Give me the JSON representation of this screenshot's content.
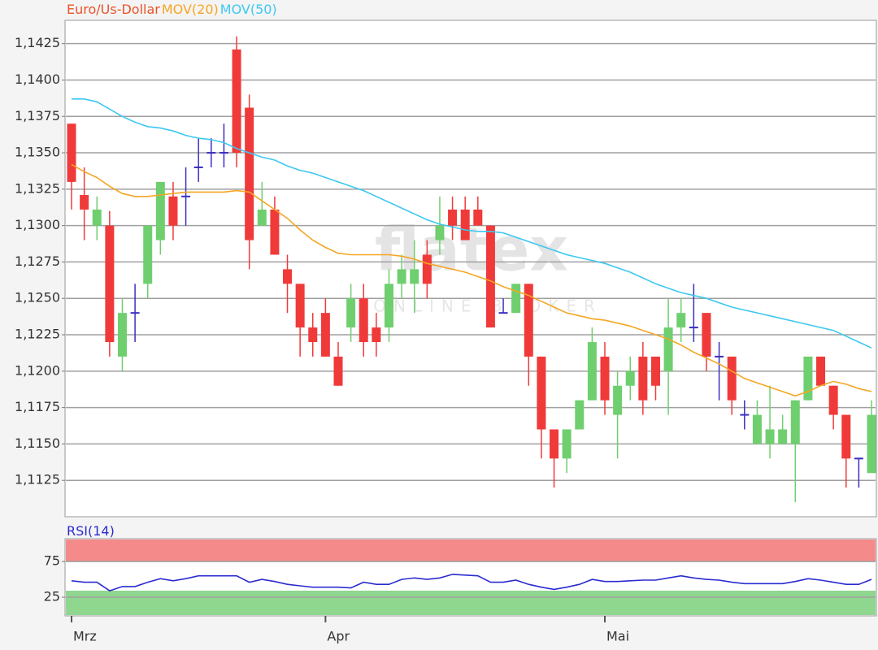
{
  "chart_data": [
    {
      "type": "candlestick",
      "name": "Euro/Us-Dollar",
      "name_color": "#e8542a",
      "up_color": "#6fcf6f",
      "down_color": "#f03a3a",
      "flat_color": "#3a2fc0",
      "watermark": "flatex",
      "watermark_subtitle": "ONLINE BROKER",
      "categories": [
        "Mrz",
        null,
        null,
        null,
        null,
        null,
        null,
        null,
        null,
        null,
        null,
        null,
        null,
        null,
        null,
        null,
        null,
        null,
        null,
        null,
        "Apr",
        null,
        null,
        null,
        null,
        null,
        null,
        null,
        null,
        null,
        null,
        null,
        null,
        null,
        null,
        null,
        null,
        null,
        null,
        null,
        null,
        null,
        "Mai",
        null,
        null,
        null,
        null,
        null,
        null,
        null,
        null,
        null,
        null,
        null,
        null,
        null,
        null,
        null,
        null,
        null,
        null,
        null,
        null,
        null
      ],
      "open": [
        1.137,
        1.1321,
        1.13,
        1.13,
        1.121,
        1.124,
        1.126,
        1.129,
        1.132,
        1.132,
        1.134,
        1.135,
        1.135,
        1.1421,
        1.1381,
        1.13,
        1.1311,
        1.127,
        1.126,
        1.123,
        1.124,
        1.121,
        1.123,
        1.125,
        1.123,
        1.123,
        1.126,
        1.126,
        1.128,
        1.129,
        1.1311,
        1.1311,
        1.1311,
        1.13,
        1.124,
        1.124,
        1.126,
        1.121,
        1.116,
        1.114,
        1.116,
        1.118,
        1.121,
        1.117,
        1.119,
        1.121,
        1.121,
        1.12,
        1.123,
        1.123,
        1.124,
        1.121,
        1.121,
        1.117,
        1.115,
        1.115,
        1.115,
        1.115,
        1.118,
        1.121,
        1.119,
        1.117,
        1.114,
        1.113
      ],
      "high": [
        1.137,
        1.134,
        1.132,
        1.131,
        1.125,
        1.126,
        1.13,
        1.133,
        1.133,
        1.134,
        1.136,
        1.136,
        1.137,
        1.143,
        1.139,
        1.133,
        1.132,
        1.128,
        1.126,
        1.124,
        1.125,
        1.122,
        1.126,
        1.126,
        1.124,
        1.127,
        1.128,
        1.129,
        1.129,
        1.132,
        1.132,
        1.132,
        1.132,
        1.13,
        1.125,
        1.126,
        1.126,
        1.121,
        1.116,
        1.116,
        1.118,
        1.123,
        1.122,
        1.12,
        1.121,
        1.122,
        1.121,
        1.125,
        1.125,
        1.126,
        1.124,
        1.122,
        1.121,
        1.118,
        1.118,
        1.119,
        1.117,
        1.118,
        1.121,
        1.121,
        1.119,
        1.117,
        1.114,
        1.118
      ],
      "low": [
        1.1311,
        1.129,
        1.129,
        1.121,
        1.12,
        1.122,
        1.125,
        1.128,
        1.129,
        1.13,
        1.133,
        1.134,
        1.134,
        1.134,
        1.127,
        1.13,
        1.128,
        1.124,
        1.121,
        1.121,
        1.121,
        1.119,
        1.122,
        1.121,
        1.121,
        1.122,
        1.125,
        1.124,
        1.125,
        1.128,
        1.129,
        1.129,
        1.13,
        1.123,
        1.124,
        1.124,
        1.119,
        1.114,
        1.112,
        1.113,
        1.116,
        1.118,
        1.117,
        1.114,
        1.118,
        1.117,
        1.118,
        1.117,
        1.122,
        1.122,
        1.12,
        1.118,
        1.117,
        1.116,
        1.115,
        1.114,
        1.115,
        1.111,
        1.118,
        1.119,
        1.116,
        1.112,
        1.112,
        1.113
      ],
      "close": [
        1.133,
        1.1311,
        1.1311,
        1.122,
        1.124,
        1.124,
        1.13,
        1.133,
        1.13,
        1.132,
        1.134,
        1.135,
        1.135,
        1.135,
        1.129,
        1.1311,
        1.128,
        1.126,
        1.123,
        1.122,
        1.121,
        1.119,
        1.125,
        1.122,
        1.122,
        1.126,
        1.127,
        1.127,
        1.126,
        1.13,
        1.13,
        1.129,
        1.13,
        1.123,
        1.124,
        1.126,
        1.121,
        1.116,
        1.114,
        1.116,
        1.118,
        1.122,
        1.118,
        1.119,
        1.12,
        1.118,
        1.119,
        1.123,
        1.124,
        1.123,
        1.121,
        1.121,
        1.118,
        1.117,
        1.117,
        1.116,
        1.116,
        1.118,
        1.121,
        1.119,
        1.117,
        1.114,
        1.114,
        1.117
      ],
      "series": [
        {
          "name": "MOV(20)",
          "color": "#f5a623",
          "values": [
            1.1342,
            1.1337,
            1.1333,
            1.1327,
            1.1322,
            1.132,
            1.132,
            1.1321,
            1.1322,
            1.1323,
            1.1323,
            1.1323,
            1.1323,
            1.1324,
            1.1323,
            1.1317,
            1.1311,
            1.1305,
            1.1297,
            1.129,
            1.1285,
            1.1281,
            1.128,
            1.128,
            1.128,
            1.128,
            1.1279,
            1.1277,
            1.1274,
            1.1272,
            1.127,
            1.1268,
            1.1265,
            1.1262,
            1.1258,
            1.1255,
            1.1252,
            1.1248,
            1.1244,
            1.124,
            1.1238,
            1.1236,
            1.1235,
            1.1233,
            1.1231,
            1.1228,
            1.1225,
            1.1222,
            1.1218,
            1.1213,
            1.1209,
            1.1205,
            1.12,
            1.1195,
            1.1192,
            1.1189,
            1.1186,
            1.1183,
            1.1186,
            1.119,
            1.1193,
            1.1191,
            1.1188,
            1.1186
          ]
        },
        {
          "name": "MOV(50)",
          "color": "#3cc8f0",
          "values": [
            1.1387,
            1.1387,
            1.1385,
            1.138,
            1.1375,
            1.1371,
            1.1368,
            1.1367,
            1.1365,
            1.1362,
            1.136,
            1.1359,
            1.1357,
            1.1353,
            1.135,
            1.1347,
            1.1345,
            1.1341,
            1.1338,
            1.1336,
            1.1333,
            1.133,
            1.1327,
            1.1324,
            1.132,
            1.1316,
            1.1312,
            1.1308,
            1.1304,
            1.1301,
            1.1299,
            1.1297,
            1.1296,
            1.1296,
            1.1295,
            1.1292,
            1.1289,
            1.1286,
            1.1283,
            1.128,
            1.1278,
            1.1276,
            1.1274,
            1.1271,
            1.1268,
            1.1264,
            1.126,
            1.1257,
            1.1254,
            1.1252,
            1.125,
            1.1247,
            1.1244,
            1.1242,
            1.124,
            1.1238,
            1.1236,
            1.1234,
            1.1232,
            1.123,
            1.1228,
            1.1224,
            1.122,
            1.1216
          ]
        }
      ],
      "ylim": [
        1.11,
        1.1441
      ],
      "yticks": [
        {
          "value": 1.1125,
          "label": "1,1125"
        },
        {
          "value": 1.115,
          "label": "1,1150"
        },
        {
          "value": 1.1175,
          "label": "1,1175"
        },
        {
          "value": 1.12,
          "label": "1,1200"
        },
        {
          "value": 1.1225,
          "label": "1,1225"
        },
        {
          "value": 1.125,
          "label": "1,1250"
        },
        {
          "value": 1.1275,
          "label": "1,1275"
        },
        {
          "value": 1.13,
          "label": "1,1300"
        },
        {
          "value": 1.1325,
          "label": "1,1325"
        },
        {
          "value": 1.135,
          "label": "1,1350"
        },
        {
          "value": 1.1375,
          "label": "1,1375"
        },
        {
          "value": 1.14,
          "label": "1,1400"
        },
        {
          "value": 1.1425,
          "label": "1,1425"
        }
      ],
      "grid": true
    },
    {
      "type": "line",
      "series": [
        {
          "name": "RSI(14)",
          "color": "#2b2bd0",
          "values": [
            48,
            46,
            46,
            34,
            40,
            40,
            46,
            51,
            48,
            51,
            55,
            55,
            55,
            55,
            46,
            50,
            47,
            43,
            41,
            39,
            39,
            39,
            38,
            46,
            43,
            43,
            50,
            52,
            50,
            52,
            57,
            56,
            55,
            46,
            46,
            49,
            43,
            39,
            36,
            39,
            43,
            50,
            47,
            47,
            48,
            49,
            49,
            52,
            55,
            52,
            50,
            49,
            46,
            44,
            44,
            44,
            44,
            47,
            51,
            49,
            46,
            43,
            43,
            50
          ]
        }
      ],
      "ylim": [
        0,
        107
      ],
      "yticks": [
        25,
        75
      ],
      "grid": true
    }
  ]
}
